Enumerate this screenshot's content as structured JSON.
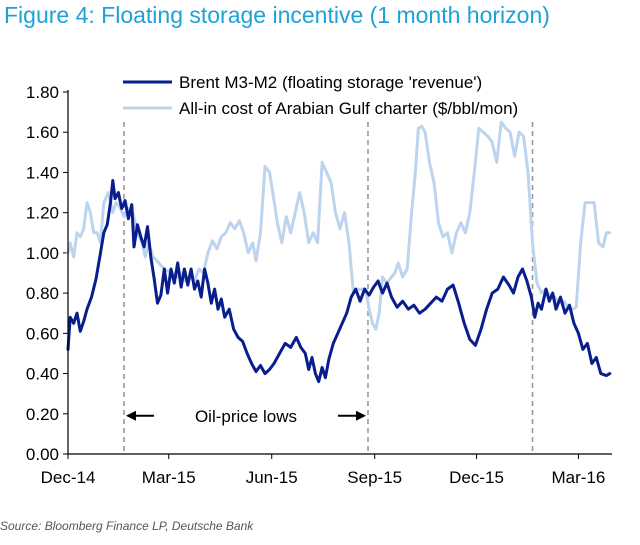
{
  "figure_title": "Figure 4: Floating storage incentive (1 month horizon)",
  "source": "Source: Bloomberg Finance LP, Deutsche Bank",
  "colors": {
    "title": "#1fa1d8",
    "series_dark": "#0a1d8c",
    "series_light": "#bcd4ee",
    "dashed": "#9a9a9a"
  },
  "chart_data": {
    "type": "line",
    "title": "Figure 4: Floating storage incentive (1 month horizon)",
    "xlabel": "",
    "ylabel": "",
    "ylim": [
      0,
      1.8
    ],
    "yticks": [
      "0.00",
      "0.20",
      "0.40",
      "0.60",
      "0.80",
      "1.00",
      "1.20",
      "1.40",
      "1.60",
      "1.80"
    ],
    "xlim": [
      "2014-12-01",
      "2016-03-31"
    ],
    "xticks": [
      {
        "date": "2014-12-01",
        "label": "Dec-14"
      },
      {
        "date": "2015-03-01",
        "label": "Mar-15"
      },
      {
        "date": "2015-06-01",
        "label": "Jun-15"
      },
      {
        "date": "2015-09-01",
        "label": "Sep-15"
      },
      {
        "date": "2015-12-01",
        "label": "Dec-15"
      },
      {
        "date": "2016-03-01",
        "label": "Mar-16"
      }
    ],
    "legend_position": "top",
    "grid": false,
    "vlines": [
      "2015-01-20",
      "2015-08-26",
      "2016-01-20"
    ],
    "annotation": {
      "text": "Oil-price lows",
      "from": "2015-01-20",
      "to": "2015-08-26",
      "y": 0.19
    },
    "series": [
      {
        "name": "Brent M3-M2 (floating storage 'revenue')",
        "color": "#0a1d8c",
        "points": [
          [
            "2014-12-01",
            0.52
          ],
          [
            "2014-12-03",
            0.68
          ],
          [
            "2014-12-06",
            0.65
          ],
          [
            "2014-12-09",
            0.7
          ],
          [
            "2014-12-12",
            0.61
          ],
          [
            "2014-12-15",
            0.66
          ],
          [
            "2014-12-18",
            0.72
          ],
          [
            "2014-12-22",
            0.78
          ],
          [
            "2014-12-26",
            0.87
          ],
          [
            "2014-12-30",
            1.0
          ],
          [
            "2015-01-02",
            1.1
          ],
          [
            "2015-01-05",
            1.14
          ],
          [
            "2015-01-08",
            1.25
          ],
          [
            "2015-01-10",
            1.36
          ],
          [
            "2015-01-12",
            1.27
          ],
          [
            "2015-01-15",
            1.3
          ],
          [
            "2015-01-18",
            1.22
          ],
          [
            "2015-01-21",
            1.26
          ],
          [
            "2015-01-24",
            1.17
          ],
          [
            "2015-01-27",
            1.24
          ],
          [
            "2015-01-29",
            1.03
          ],
          [
            "2015-02-01",
            1.14
          ],
          [
            "2015-02-04",
            1.08
          ],
          [
            "2015-02-07",
            1.03
          ],
          [
            "2015-02-10",
            1.13
          ],
          [
            "2015-02-13",
            0.98
          ],
          [
            "2015-02-16",
            0.87
          ],
          [
            "2015-02-19",
            0.75
          ],
          [
            "2015-02-22",
            0.79
          ],
          [
            "2015-02-25",
            0.92
          ],
          [
            "2015-02-28",
            0.8
          ],
          [
            "2015-03-03",
            0.92
          ],
          [
            "2015-03-06",
            0.85
          ],
          [
            "2015-03-09",
            0.95
          ],
          [
            "2015-03-12",
            0.83
          ],
          [
            "2015-03-15",
            0.92
          ],
          [
            "2015-03-18",
            0.84
          ],
          [
            "2015-03-21",
            0.92
          ],
          [
            "2015-03-24",
            0.82
          ],
          [
            "2015-03-27",
            0.86
          ],
          [
            "2015-03-30",
            0.78
          ],
          [
            "2015-04-02",
            0.92
          ],
          [
            "2015-04-05",
            0.85
          ],
          [
            "2015-04-08",
            0.75
          ],
          [
            "2015-04-11",
            0.82
          ],
          [
            "2015-04-14",
            0.72
          ],
          [
            "2015-04-17",
            0.77
          ],
          [
            "2015-04-20",
            0.68
          ],
          [
            "2015-04-24",
            0.72
          ],
          [
            "2015-04-28",
            0.62
          ],
          [
            "2015-05-02",
            0.58
          ],
          [
            "2015-05-06",
            0.56
          ],
          [
            "2015-05-10",
            0.5
          ],
          [
            "2015-05-14",
            0.45
          ],
          [
            "2015-05-18",
            0.41
          ],
          [
            "2015-05-22",
            0.44
          ],
          [
            "2015-05-26",
            0.4
          ],
          [
            "2015-05-30",
            0.42
          ],
          [
            "2015-06-03",
            0.45
          ],
          [
            "2015-06-08",
            0.5
          ],
          [
            "2015-06-13",
            0.55
          ],
          [
            "2015-06-18",
            0.53
          ],
          [
            "2015-06-23",
            0.58
          ],
          [
            "2015-06-27",
            0.53
          ],
          [
            "2015-07-01",
            0.5
          ],
          [
            "2015-07-04",
            0.42
          ],
          [
            "2015-07-07",
            0.48
          ],
          [
            "2015-07-10",
            0.4
          ],
          [
            "2015-07-13",
            0.36
          ],
          [
            "2015-07-16",
            0.43
          ],
          [
            "2015-07-19",
            0.38
          ],
          [
            "2015-07-22",
            0.47
          ],
          [
            "2015-07-26",
            0.55
          ],
          [
            "2015-07-30",
            0.6
          ],
          [
            "2015-08-03",
            0.65
          ],
          [
            "2015-08-07",
            0.7
          ],
          [
            "2015-08-11",
            0.78
          ],
          [
            "2015-08-15",
            0.82
          ],
          [
            "2015-08-19",
            0.76
          ],
          [
            "2015-08-23",
            0.82
          ],
          [
            "2015-08-27",
            0.79
          ],
          [
            "2015-08-31",
            0.83
          ],
          [
            "2015-09-04",
            0.86
          ],
          [
            "2015-09-08",
            0.8
          ],
          [
            "2015-09-12",
            0.85
          ],
          [
            "2015-09-16",
            0.78
          ],
          [
            "2015-09-21",
            0.73
          ],
          [
            "2015-09-26",
            0.76
          ],
          [
            "2015-10-01",
            0.72
          ],
          [
            "2015-10-06",
            0.74
          ],
          [
            "2015-10-11",
            0.7
          ],
          [
            "2015-10-16",
            0.72
          ],
          [
            "2015-10-21",
            0.75
          ],
          [
            "2015-10-26",
            0.78
          ],
          [
            "2015-10-31",
            0.76
          ],
          [
            "2015-11-05",
            0.82
          ],
          [
            "2015-11-10",
            0.84
          ],
          [
            "2015-11-15",
            0.75
          ],
          [
            "2015-11-20",
            0.65
          ],
          [
            "2015-11-25",
            0.57
          ],
          [
            "2015-11-30",
            0.54
          ],
          [
            "2015-12-05",
            0.62
          ],
          [
            "2015-12-10",
            0.72
          ],
          [
            "2015-12-15",
            0.8
          ],
          [
            "2015-12-20",
            0.82
          ],
          [
            "2015-12-25",
            0.88
          ],
          [
            "2015-12-30",
            0.84
          ],
          [
            "2016-01-03",
            0.8
          ],
          [
            "2016-01-07",
            0.88
          ],
          [
            "2016-01-11",
            0.92
          ],
          [
            "2016-01-15",
            0.86
          ],
          [
            "2016-01-19",
            0.78
          ],
          [
            "2016-01-22",
            0.68
          ],
          [
            "2016-01-25",
            0.75
          ],
          [
            "2016-01-28",
            0.72
          ],
          [
            "2016-02-01",
            0.82
          ],
          [
            "2016-02-04",
            0.76
          ],
          [
            "2016-02-07",
            0.8
          ],
          [
            "2016-02-10",
            0.72
          ],
          [
            "2016-02-14",
            0.78
          ],
          [
            "2016-02-18",
            0.7
          ],
          [
            "2016-02-22",
            0.74
          ],
          [
            "2016-02-26",
            0.65
          ],
          [
            "2016-03-01",
            0.6
          ],
          [
            "2016-03-05",
            0.52
          ],
          [
            "2016-03-09",
            0.55
          ],
          [
            "2016-03-13",
            0.45
          ],
          [
            "2016-03-17",
            0.48
          ],
          [
            "2016-03-21",
            0.4
          ],
          [
            "2016-03-26",
            0.39
          ],
          [
            "2016-03-29",
            0.4
          ]
        ]
      },
      {
        "name": "All-in cost of Arabian Gulf charter ($/bbl/mon)",
        "color": "#bcd4ee",
        "points": [
          [
            "2014-12-01",
            1.0
          ],
          [
            "2014-12-03",
            1.05
          ],
          [
            "2014-12-06",
            0.98
          ],
          [
            "2014-12-09",
            1.1
          ],
          [
            "2014-12-12",
            1.08
          ],
          [
            "2014-12-15",
            1.12
          ],
          [
            "2014-12-18",
            1.25
          ],
          [
            "2014-12-21",
            1.2
          ],
          [
            "2014-12-24",
            1.1
          ],
          [
            "2014-12-27",
            1.1
          ],
          [
            "2014-12-30",
            1.05
          ],
          [
            "2015-01-02",
            1.25
          ],
          [
            "2015-01-06",
            1.3
          ],
          [
            "2015-01-10",
            1.2
          ],
          [
            "2015-01-13",
            1.25
          ],
          [
            "2015-01-16",
            1.23
          ],
          [
            "2015-01-20",
            1.18
          ],
          [
            "2015-01-24",
            1.22
          ],
          [
            "2015-01-28",
            1.2
          ],
          [
            "2015-02-01",
            1.1
          ],
          [
            "2015-02-05",
            1.05
          ],
          [
            "2015-02-08",
            0.98
          ],
          [
            "2015-02-11",
            1.05
          ],
          [
            "2015-02-15",
            0.98
          ],
          [
            "2015-02-20",
            0.95
          ],
          [
            "2015-02-25",
            0.92
          ],
          [
            "2015-03-03",
            0.9
          ],
          [
            "2015-03-08",
            0.88
          ],
          [
            "2015-03-12",
            0.9
          ],
          [
            "2015-03-16",
            0.86
          ],
          [
            "2015-03-20",
            0.88
          ],
          [
            "2015-03-24",
            0.86
          ],
          [
            "2015-03-28",
            0.92
          ],
          [
            "2015-04-01",
            0.9
          ],
          [
            "2015-04-05",
            1.0
          ],
          [
            "2015-04-09",
            1.06
          ],
          [
            "2015-04-13",
            1.02
          ],
          [
            "2015-04-17",
            1.08
          ],
          [
            "2015-04-21",
            1.1
          ],
          [
            "2015-04-25",
            1.15
          ],
          [
            "2015-04-29",
            1.12
          ],
          [
            "2015-05-03",
            1.16
          ],
          [
            "2015-05-07",
            1.1
          ],
          [
            "2015-05-11",
            1.0
          ],
          [
            "2015-05-15",
            1.05
          ],
          [
            "2015-05-18",
            0.96
          ],
          [
            "2015-05-22",
            1.1
          ],
          [
            "2015-05-26",
            1.43
          ],
          [
            "2015-05-30",
            1.4
          ],
          [
            "2015-06-02",
            1.3
          ],
          [
            "2015-06-06",
            1.15
          ],
          [
            "2015-06-10",
            1.05
          ],
          [
            "2015-06-14",
            1.18
          ],
          [
            "2015-06-18",
            1.1
          ],
          [
            "2015-06-22",
            1.2
          ],
          [
            "2015-06-26",
            1.3
          ],
          [
            "2015-06-30",
            1.2
          ],
          [
            "2015-07-04",
            1.05
          ],
          [
            "2015-07-08",
            1.1
          ],
          [
            "2015-07-12",
            1.05
          ],
          [
            "2015-07-16",
            1.45
          ],
          [
            "2015-07-20",
            1.4
          ],
          [
            "2015-07-24",
            1.35
          ],
          [
            "2015-07-28",
            1.2
          ],
          [
            "2015-08-01",
            1.12
          ],
          [
            "2015-08-05",
            1.2
          ],
          [
            "2015-08-09",
            1.05
          ],
          [
            "2015-08-13",
            0.8
          ],
          [
            "2015-08-17",
            0.82
          ],
          [
            "2015-08-21",
            0.82
          ],
          [
            "2015-08-24",
            0.82
          ],
          [
            "2015-08-27",
            0.72
          ],
          [
            "2015-08-30",
            0.65
          ],
          [
            "2015-09-02",
            0.62
          ],
          [
            "2015-09-05",
            0.7
          ],
          [
            "2015-09-08",
            0.88
          ],
          [
            "2015-09-12",
            0.85
          ],
          [
            "2015-09-16",
            0.88
          ],
          [
            "2015-09-19",
            0.9
          ],
          [
            "2015-09-22",
            0.95
          ],
          [
            "2015-09-26",
            0.88
          ],
          [
            "2015-09-30",
            0.92
          ],
          [
            "2015-10-04",
            1.2
          ],
          [
            "2015-10-07",
            1.38
          ],
          [
            "2015-10-10",
            1.62
          ],
          [
            "2015-10-13",
            1.63
          ],
          [
            "2015-10-16",
            1.6
          ],
          [
            "2015-10-20",
            1.45
          ],
          [
            "2015-10-24",
            1.35
          ],
          [
            "2015-10-28",
            1.15
          ],
          [
            "2015-11-01",
            1.08
          ],
          [
            "2015-11-05",
            1.1
          ],
          [
            "2015-11-09",
            1.0
          ],
          [
            "2015-11-13",
            1.1
          ],
          [
            "2015-11-17",
            1.15
          ],
          [
            "2015-11-21",
            1.1
          ],
          [
            "2015-11-25",
            1.2
          ],
          [
            "2015-11-29",
            1.4
          ],
          [
            "2015-12-03",
            1.62
          ],
          [
            "2015-12-07",
            1.6
          ],
          [
            "2015-12-11",
            1.58
          ],
          [
            "2015-12-15",
            1.55
          ],
          [
            "2015-12-19",
            1.45
          ],
          [
            "2015-12-23",
            1.65
          ],
          [
            "2015-12-27",
            1.62
          ],
          [
            "2015-12-31",
            1.6
          ],
          [
            "2016-01-04",
            1.48
          ],
          [
            "2016-01-08",
            1.6
          ],
          [
            "2016-01-12",
            1.58
          ],
          [
            "2016-01-16",
            1.4
          ],
          [
            "2016-01-20",
            1.05
          ],
          [
            "2016-01-24",
            0.85
          ],
          [
            "2016-01-28",
            0.8
          ],
          [
            "2016-02-01",
            0.82
          ],
          [
            "2016-02-05",
            0.78
          ],
          [
            "2016-02-09",
            0.78
          ],
          [
            "2016-02-13",
            0.75
          ],
          [
            "2016-02-17",
            0.76
          ],
          [
            "2016-02-21",
            0.73
          ],
          [
            "2016-02-25",
            0.72
          ],
          [
            "2016-02-28",
            0.73
          ],
          [
            "2016-03-03",
            1.05
          ],
          [
            "2016-03-07",
            1.25
          ],
          [
            "2016-03-11",
            1.25
          ],
          [
            "2016-03-15",
            1.25
          ],
          [
            "2016-03-19",
            1.05
          ],
          [
            "2016-03-23",
            1.03
          ],
          [
            "2016-03-26",
            1.1
          ],
          [
            "2016-03-29",
            1.1
          ]
        ]
      }
    ]
  }
}
